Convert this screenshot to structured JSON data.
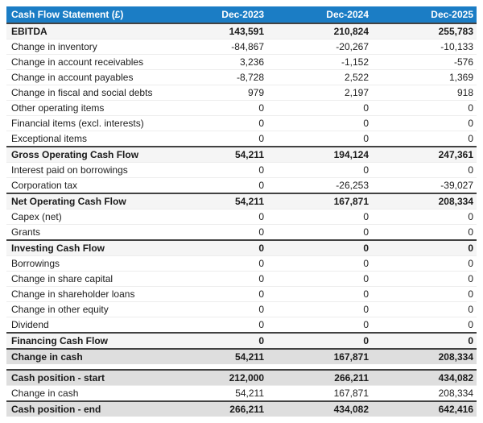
{
  "table": {
    "title": "Cash Flow Statement (£)",
    "columns": [
      "Dec-2023",
      "Dec-2024",
      "Dec-2025"
    ],
    "sections": [
      {
        "rows": [
          {
            "type": "subtotal",
            "label": "EBITDA",
            "values": [
              "143,591",
              "210,824",
              "255,783"
            ]
          },
          {
            "type": "normal",
            "label": "Change in inventory",
            "values": [
              "-84,867",
              "-20,267",
              "-10,133"
            ]
          },
          {
            "type": "normal",
            "label": "Change in account receivables",
            "values": [
              "3,236",
              "-1,152",
              "-576"
            ]
          },
          {
            "type": "normal",
            "label": "Change in account payables",
            "values": [
              "-8,728",
              "2,522",
              "1,369"
            ]
          },
          {
            "type": "normal",
            "label": "Change in fiscal and social debts",
            "values": [
              "979",
              "2,197",
              "918"
            ]
          },
          {
            "type": "normal",
            "label": "Other operating items",
            "values": [
              "0",
              "0",
              "0"
            ]
          },
          {
            "type": "normal",
            "label": "Financial items (excl. interests)",
            "values": [
              "0",
              "0",
              "0"
            ]
          },
          {
            "type": "normal",
            "label": "Exceptional items",
            "values": [
              "0",
              "0",
              "0"
            ]
          },
          {
            "type": "subtotal",
            "label": "Gross Operating Cash Flow",
            "values": [
              "54,211",
              "194,124",
              "247,361"
            ]
          },
          {
            "type": "normal",
            "label": "Interest paid on borrowings",
            "values": [
              "0",
              "0",
              "0"
            ]
          },
          {
            "type": "normal",
            "label": "Corporation tax",
            "values": [
              "0",
              "-26,253",
              "-39,027"
            ]
          },
          {
            "type": "subtotal",
            "label": "Net Operating Cash Flow",
            "values": [
              "54,211",
              "167,871",
              "208,334"
            ]
          },
          {
            "type": "normal",
            "label": "Capex (net)",
            "values": [
              "0",
              "0",
              "0"
            ]
          },
          {
            "type": "normal",
            "label": "Grants",
            "values": [
              "0",
              "0",
              "0"
            ]
          },
          {
            "type": "subtotal",
            "label": "Investing Cash Flow",
            "values": [
              "0",
              "0",
              "0"
            ]
          },
          {
            "type": "normal",
            "label": "Borrowings",
            "values": [
              "0",
              "0",
              "0"
            ]
          },
          {
            "type": "normal",
            "label": "Change in share capital",
            "values": [
              "0",
              "0",
              "0"
            ]
          },
          {
            "type": "normal",
            "label": "Change in shareholder loans",
            "values": [
              "0",
              "0",
              "0"
            ]
          },
          {
            "type": "normal",
            "label": "Change in other equity",
            "values": [
              "0",
              "0",
              "0"
            ]
          },
          {
            "type": "normal",
            "label": "Dividend",
            "values": [
              "0",
              "0",
              "0"
            ]
          },
          {
            "type": "subtotal",
            "label": "Financing Cash Flow",
            "values": [
              "0",
              "0",
              "0"
            ]
          },
          {
            "type": "total",
            "label": "Change in cash",
            "values": [
              "54,211",
              "167,871",
              "208,334"
            ]
          }
        ]
      },
      {
        "rows": [
          {
            "type": "total",
            "label": "Cash position - start",
            "values": [
              "212,000",
              "266,211",
              "434,082"
            ]
          },
          {
            "type": "normal",
            "label": "Change in cash",
            "values": [
              "54,211",
              "167,871",
              "208,334"
            ]
          },
          {
            "type": "total",
            "label": "Cash position - end",
            "values": [
              "266,211",
              "434,082",
              "642,416"
            ]
          }
        ]
      }
    ]
  },
  "colors": {
    "header_bg": "#1b7dc5",
    "header_text": "#ffffff",
    "subtotal_row_bg": "#f5f5f5",
    "total_row_bg": "#dedede",
    "dark_border": "#424242",
    "row_divider": "#ededed"
  }
}
